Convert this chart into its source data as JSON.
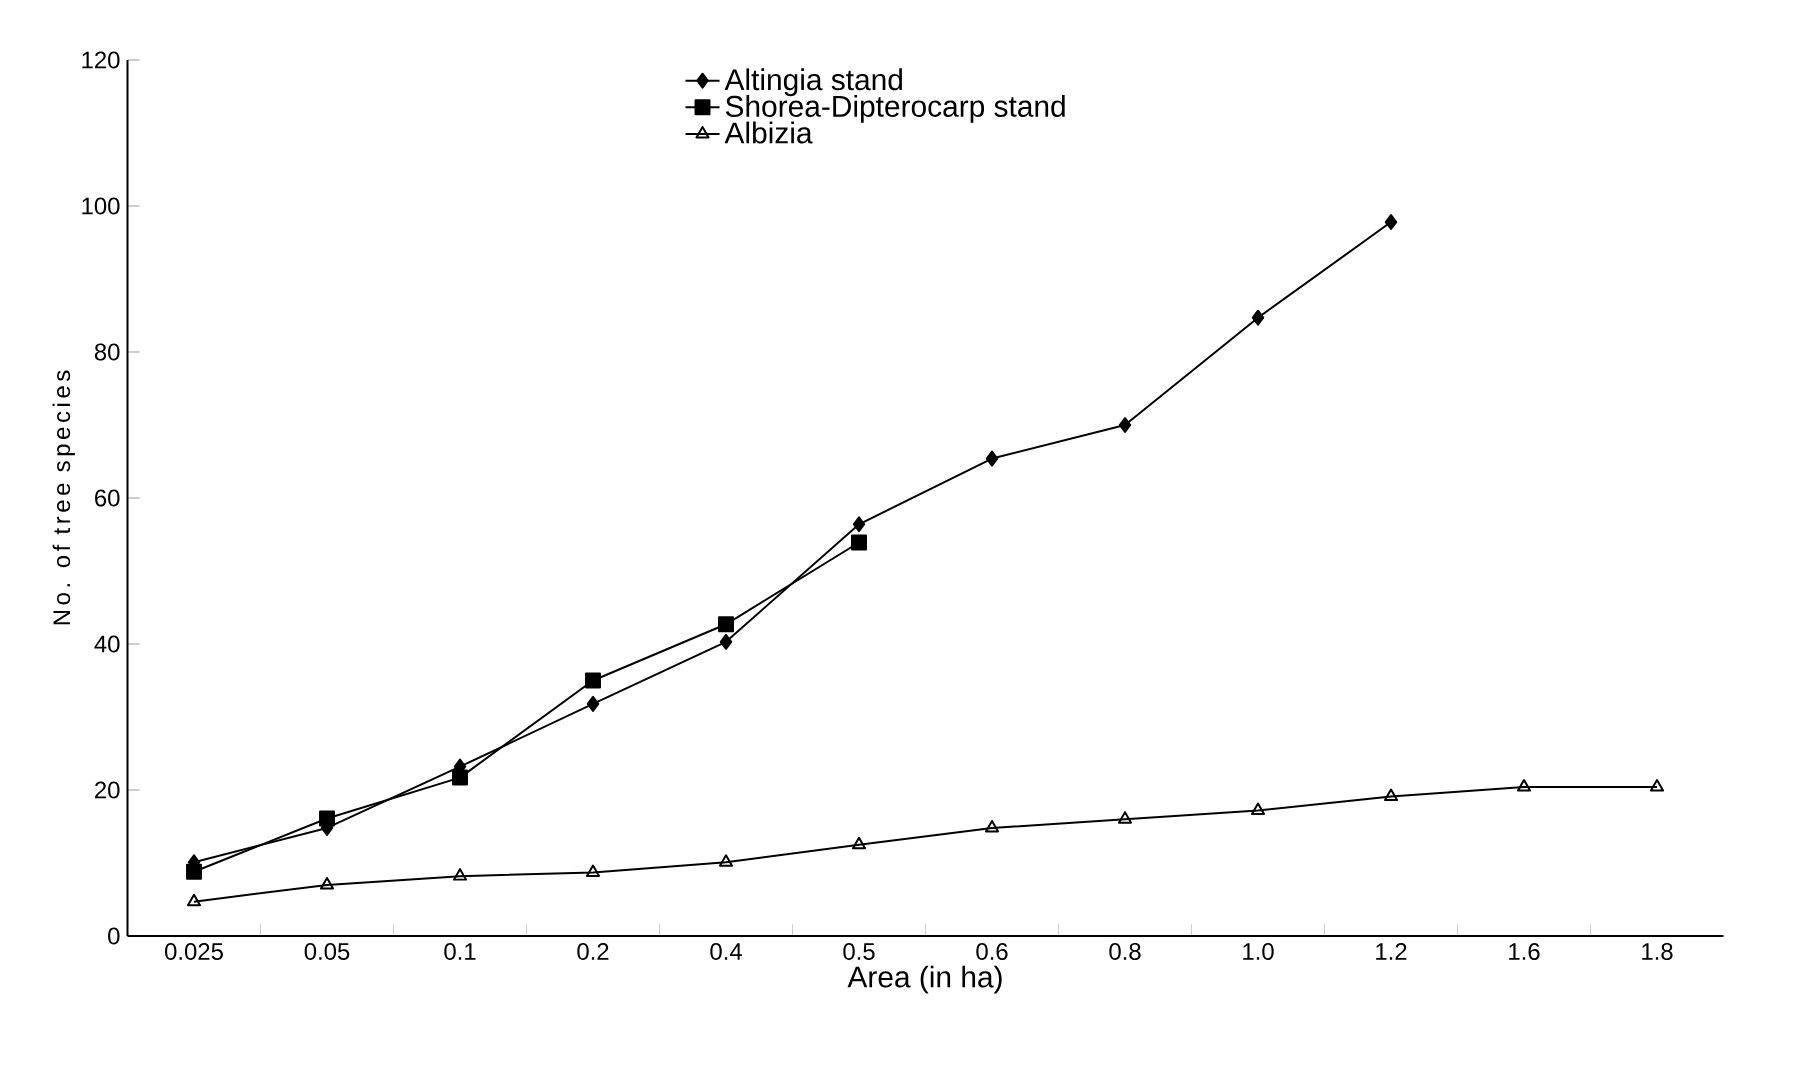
{
  "chart_data": {
    "type": "line",
    "xlabel": "Area (in ha)",
    "ylabel": "No. of tree species",
    "categories": [
      "0.025",
      "0.05",
      "0.1",
      "0.2",
      "0.4",
      "0.5",
      "0.6",
      "0.8",
      "1.0",
      "1.2",
      "1.6",
      "1.8"
    ],
    "series": [
      {
        "name": "Altingia stand",
        "color": "#000000",
        "marker": "diamond",
        "values": [
          10.1,
          14.8,
          23.2,
          31.8,
          40.3,
          56.4,
          65.4,
          70,
          84.7,
          97.8,
          null,
          null
        ]
      },
      {
        "name": "Shorea-Dipterocarp stand",
        "color": "#000000",
        "marker": "square",
        "values": [
          8.8,
          16.1,
          21.7,
          35,
          42.7,
          53.9,
          null,
          null,
          null,
          null,
          null,
          null
        ]
      },
      {
        "name": "Albizia",
        "color": "#000000",
        "marker": "triangle",
        "values": [
          4.7,
          7,
          8.2,
          8.7,
          10.1,
          12.5,
          14.8,
          16,
          17.2,
          19.1,
          20.4,
          20.4
        ]
      }
    ],
    "ylim": [
      0,
      120
    ],
    "yticks": [
      0,
      20,
      40,
      60,
      80,
      100,
      120
    ],
    "legend": "top",
    "grid": false,
    "line_style": "solid"
  }
}
